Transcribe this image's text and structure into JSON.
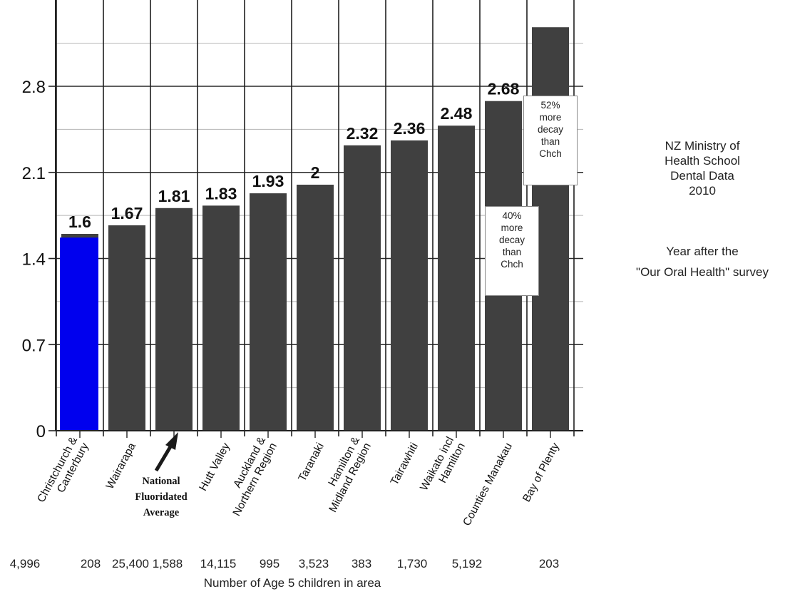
{
  "chart_data": {
    "type": "bar",
    "title": "",
    "xlabel": "Number of Age 5 children in area",
    "ylabel": "",
    "ylim": [
      0,
      3.5
    ],
    "yticks": [
      "0",
      "0.7",
      "1.4",
      "2.1",
      "2.8"
    ],
    "grid": true,
    "categories": [
      "Christchurch & Canterbury",
      "Wairarapa",
      "National Fluoridated Average",
      "Hutt Valley",
      "Auckland & Northern Region",
      "Taranaki",
      "Hamilton & Midland Region",
      "Tairawhiti",
      "Waikato incl Hamilton",
      "Counties Manakau",
      "Bay of Plenty"
    ],
    "tick_labels": [
      [
        "Christchurch &",
        "Canterbury"
      ],
      [
        "Wairarapa"
      ],
      [],
      [
        "Hutt Valley"
      ],
      [
        "Auckland &",
        "Northern Region"
      ],
      [
        "Taranaki"
      ],
      [
        "Hamilton &",
        "Midland Region"
      ],
      [
        "Tairawhiti"
      ],
      [
        "Waikato incl",
        "Hamilton"
      ],
      [
        "Counties Manakau"
      ],
      [
        "Bay of Plenty"
      ]
    ],
    "values": [
      1.6,
      1.67,
      1.81,
      1.83,
      1.93,
      2.0,
      2.32,
      2.36,
      2.48,
      2.68,
      3.28
    ],
    "data_labels": [
      "1.6",
      "1.67",
      "1.81",
      "1.83",
      "1.93",
      "2",
      "2.32",
      "2.36",
      "2.48",
      "2.68",
      ""
    ],
    "highlight_value": 1.57,
    "colors": {
      "bar": "#404040",
      "highlight": "#0000ee",
      "grid": "#b5b5b5",
      "axis": "#222222"
    },
    "children_counts": [
      "4,996",
      "208",
      "25,400",
      "1,588",
      "14,115",
      "995",
      "3,523",
      "383",
      "1,730",
      "5,192",
      "203"
    ]
  },
  "annotations": {
    "national_average": [
      "National",
      "Fluoridated",
      "Average"
    ],
    "callout_52": [
      "52%",
      "more",
      "decay",
      "than",
      "Chch"
    ],
    "callout_40": [
      "40%",
      "more",
      "decay",
      "than",
      "Chch"
    ]
  },
  "side_note": {
    "source": [
      "NZ Ministry of",
      "Health School",
      "Dental Data",
      "2010"
    ],
    "year_after": [
      "Year after the",
      "\"Our Oral Health\" survey"
    ]
  }
}
